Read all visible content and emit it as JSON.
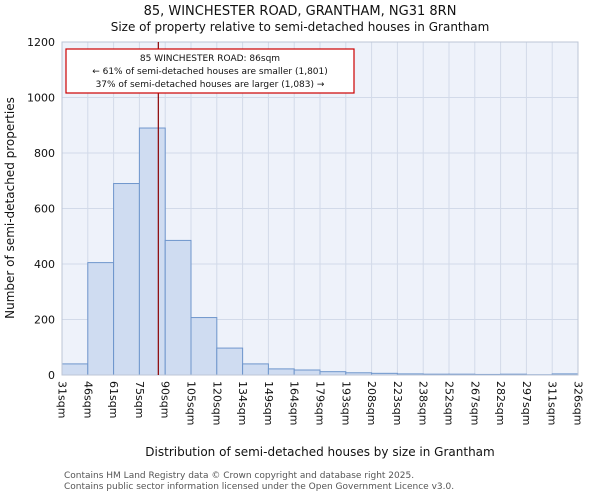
{
  "title": "85, WINCHESTER ROAD, GRANTHAM, NG31 8RN",
  "subtitle": "Size of property relative to semi-detached houses in Grantham",
  "ylabel": "Number of semi-detached properties",
  "xlabel": "Distribution of semi-detached houses by size in Grantham",
  "annotation": {
    "line1": "85 WINCHESTER ROAD: 86sqm",
    "line2": "← 61% of semi-detached houses are smaller (1,801)",
    "line3": "37% of semi-detached houses are larger (1,083) →"
  },
  "footer": {
    "line1": "Contains HM Land Registry data © Crown copyright and database right 2025.",
    "line2": "Contains public sector information licensed under the Open Government Licence v3.0."
  },
  "chart_data": {
    "type": "bar",
    "x_labels": [
      "31sqm",
      "46sqm",
      "61sqm",
      "75sqm",
      "90sqm",
      "105sqm",
      "120sqm",
      "134sqm",
      "149sqm",
      "164sqm",
      "179sqm",
      "193sqm",
      "208sqm",
      "223sqm",
      "238sqm",
      "252sqm",
      "267sqm",
      "282sqm",
      "297sqm",
      "311sqm",
      "326sqm"
    ],
    "values": [
      40,
      405,
      690,
      890,
      485,
      207,
      97,
      40,
      22,
      18,
      12,
      8,
      6,
      4,
      3,
      3,
      2,
      3,
      1,
      4
    ],
    "ylim": [
      0,
      1200
    ],
    "yticks": [
      0,
      200,
      400,
      600,
      800,
      1000,
      1200
    ],
    "marker": {
      "value_sqm": 86,
      "label": "85 WINCHESTER ROAD: 86sqm"
    },
    "legend": "none",
    "grid": "on",
    "colors": {
      "bar_fill": "#cfdcf1",
      "bar_stroke": "#6f96cc",
      "marker_line": "#8b0000",
      "grid_line": "#d2dae9",
      "plot_bg": "#eef2fa",
      "plot_border": "#bcc6d6",
      "annotation_border": "#cc0000",
      "footer_text": "#555555"
    }
  }
}
